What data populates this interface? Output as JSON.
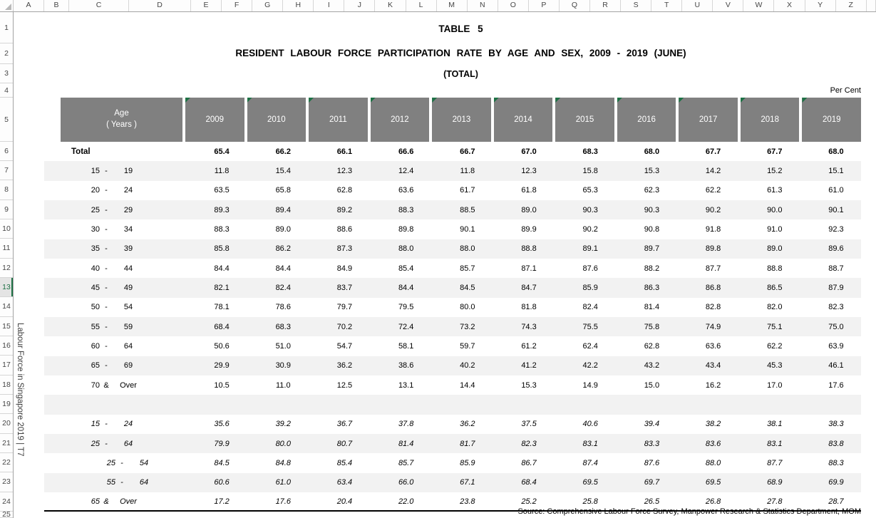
{
  "grid": {
    "columns": [
      "A",
      "B",
      "C",
      "D",
      "E",
      "F",
      "G",
      "H",
      "I",
      "J",
      "K",
      "L",
      "M",
      "N",
      "O",
      "P",
      "Q",
      "R",
      "S",
      "T",
      "U",
      "V",
      "W",
      "X",
      "Y",
      "Z",
      ""
    ],
    "rows": [
      "1",
      "2",
      "3",
      "4",
      "5",
      "6",
      "7",
      "8",
      "9",
      "10",
      "11",
      "12",
      "13",
      "14",
      "15",
      "16",
      "17",
      "18",
      "19",
      "20",
      "21",
      "22",
      "23",
      "24",
      "25"
    ],
    "selected_row": "13"
  },
  "titles": {
    "table_label": "TABLE 5",
    "main_title": "RESIDENT LABOUR FORCE PARTICIPATION RATE BY AGE AND SEX, 2009 - 2019 (JUNE)",
    "subtitle": "(TOTAL)",
    "unit_label": "Per Cent"
  },
  "sidebar_text": "Labour Force in Singapore 2019 | T7",
  "table": {
    "age_header": [
      "Age",
      "( Years )"
    ],
    "years": [
      "2009",
      "2010",
      "2011",
      "2012",
      "2013",
      "2014",
      "2015",
      "2016",
      "2017",
      "2018",
      "2019"
    ],
    "total_row": {
      "label": "Total",
      "values": [
        "65.4",
        "66.2",
        "66.1",
        "66.6",
        "66.7",
        "67.0",
        "68.3",
        "68.0",
        "67.7",
        "67.7",
        "68.0"
      ]
    },
    "age_rows": [
      {
        "range": [
          "15",
          "-",
          "19"
        ],
        "values": [
          "11.8",
          "15.4",
          "12.3",
          "12.4",
          "11.8",
          "12.3",
          "15.8",
          "15.3",
          "14.2",
          "15.2",
          "15.1"
        ]
      },
      {
        "range": [
          "20",
          "-",
          "24"
        ],
        "values": [
          "63.5",
          "65.8",
          "62.8",
          "63.6",
          "61.7",
          "61.8",
          "65.3",
          "62.3",
          "62.2",
          "61.3",
          "61.0"
        ]
      },
      {
        "range": [
          "25",
          "-",
          "29"
        ],
        "values": [
          "89.3",
          "89.4",
          "89.2",
          "88.3",
          "88.5",
          "89.0",
          "90.3",
          "90.3",
          "90.2",
          "90.0",
          "90.1"
        ]
      },
      {
        "range": [
          "30",
          "-",
          "34"
        ],
        "values": [
          "88.3",
          "89.0",
          "88.6",
          "89.8",
          "90.1",
          "89.9",
          "90.2",
          "90.8",
          "91.8",
          "91.0",
          "92.3"
        ]
      },
      {
        "range": [
          "35",
          "-",
          "39"
        ],
        "values": [
          "85.8",
          "86.2",
          "87.3",
          "88.0",
          "88.0",
          "88.8",
          "89.1",
          "89.7",
          "89.8",
          "89.0",
          "89.6"
        ]
      },
      {
        "range": [
          "40",
          "-",
          "44"
        ],
        "values": [
          "84.4",
          "84.4",
          "84.9",
          "85.4",
          "85.7",
          "87.1",
          "87.6",
          "88.2",
          "87.7",
          "88.8",
          "88.7"
        ]
      },
      {
        "range": [
          "45",
          "-",
          "49"
        ],
        "values": [
          "82.1",
          "82.4",
          "83.7",
          "84.4",
          "84.5",
          "84.7",
          "85.9",
          "86.3",
          "86.8",
          "86.5",
          "87.9"
        ]
      },
      {
        "range": [
          "50",
          "-",
          "54"
        ],
        "values": [
          "78.1",
          "78.6",
          "79.7",
          "79.5",
          "80.0",
          "81.8",
          "82.4",
          "81.4",
          "82.8",
          "82.0",
          "82.3"
        ]
      },
      {
        "range": [
          "55",
          "-",
          "59"
        ],
        "values": [
          "68.4",
          "68.3",
          "70.2",
          "72.4",
          "73.2",
          "74.3",
          "75.5",
          "75.8",
          "74.9",
          "75.1",
          "75.0"
        ]
      },
      {
        "range": [
          "60",
          "-",
          "64"
        ],
        "values": [
          "50.6",
          "51.0",
          "54.7",
          "58.1",
          "59.7",
          "61.2",
          "62.4",
          "62.8",
          "63.6",
          "62.2",
          "63.9"
        ]
      },
      {
        "range": [
          "65",
          "-",
          "69"
        ],
        "values": [
          "29.9",
          "30.9",
          "36.2",
          "38.6",
          "40.2",
          "41.2",
          "42.2",
          "43.2",
          "43.4",
          "45.3",
          "46.1"
        ]
      },
      {
        "range": [
          "70",
          "&",
          "Over"
        ],
        "values": [
          "10.5",
          "11.0",
          "12.5",
          "13.1",
          "14.4",
          "15.3",
          "14.9",
          "15.0",
          "16.2",
          "17.0",
          "17.6"
        ]
      }
    ],
    "summary_rows": [
      {
        "range": [
          "15",
          "-",
          "24"
        ],
        "indent": false,
        "values": [
          "35.6",
          "39.2",
          "36.7",
          "37.8",
          "36.2",
          "37.5",
          "40.6",
          "39.4",
          "38.2",
          "38.1",
          "38.3"
        ]
      },
      {
        "range": [
          "25",
          "-",
          "64"
        ],
        "indent": false,
        "values": [
          "79.9",
          "80.0",
          "80.7",
          "81.4",
          "81.7",
          "82.3",
          "83.1",
          "83.3",
          "83.6",
          "83.1",
          "83.8"
        ]
      },
      {
        "range": [
          "25",
          "-",
          "54"
        ],
        "indent": true,
        "values": [
          "84.5",
          "84.8",
          "85.4",
          "85.7",
          "85.9",
          "86.7",
          "87.4",
          "87.6",
          "88.0",
          "87.7",
          "88.3"
        ]
      },
      {
        "range": [
          "55",
          "-",
          "64"
        ],
        "indent": true,
        "values": [
          "60.6",
          "61.0",
          "63.4",
          "66.0",
          "67.1",
          "68.4",
          "69.5",
          "69.7",
          "69.5",
          "68.9",
          "69.9"
        ]
      },
      {
        "range": [
          "65",
          "&",
          "Over"
        ],
        "indent": false,
        "values": [
          "17.2",
          "17.6",
          "20.4",
          "22.0",
          "23.8",
          "25.2",
          "25.8",
          "26.5",
          "26.8",
          "27.8",
          "28.7"
        ]
      }
    ],
    "source": "Source:  Comprehensive Labour Force Survey, Manpower Research & Statistics Department, MOM"
  },
  "colors": {
    "header_fill": "#808080",
    "header_text": "#ffffff",
    "band_fill": "#f2f2f2",
    "selection_green": "#1e7145",
    "table_border": "#000000"
  }
}
